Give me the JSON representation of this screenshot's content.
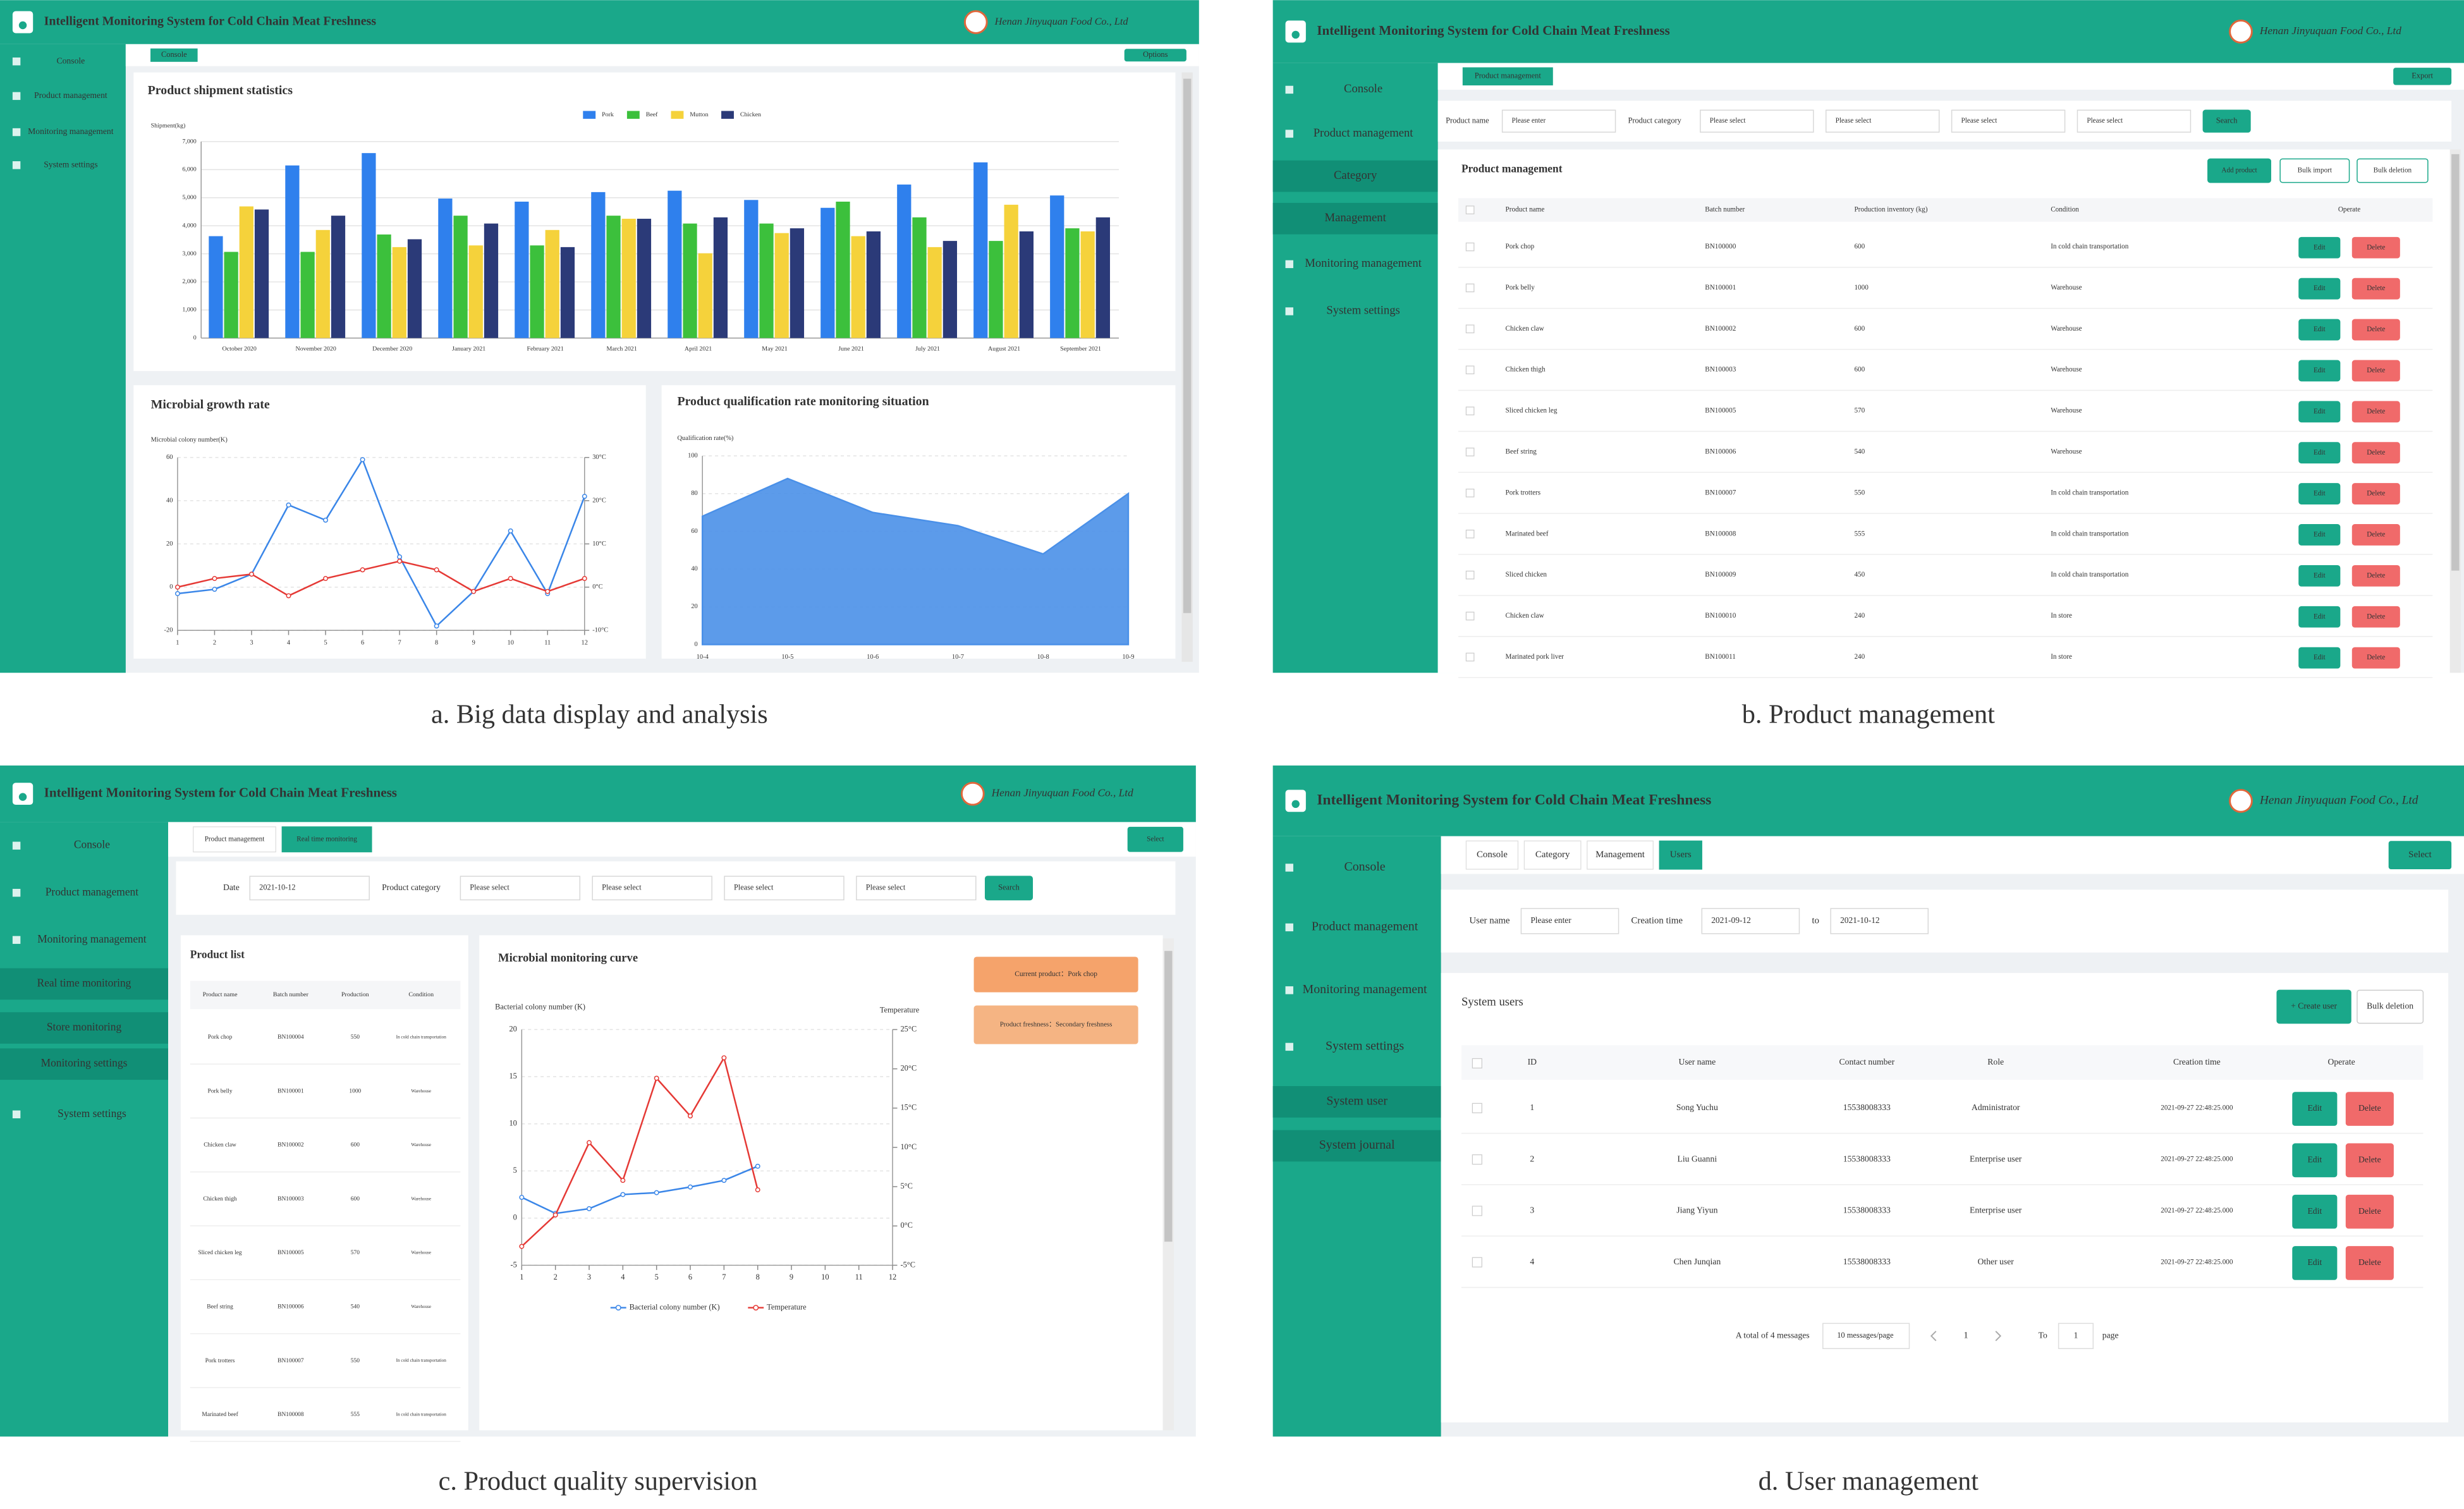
{
  "header": {
    "title": "Intelligent Monitoring System for Cold Chain Meat Freshness",
    "company": "Henan Jinyuquan Food Co., Ltd"
  },
  "buttons": {
    "edit": "Edit",
    "delete": "Delete",
    "search": "Search"
  },
  "panels": [
    {
      "caption": "a. Big data display and analysis",
      "menu": [
        "Console",
        "Product management",
        "Monitoring management",
        "System settings"
      ],
      "tabs": [
        "Console"
      ],
      "action": "Options"
    },
    {
      "caption": "b. Product management",
      "menu": [
        "Console",
        "Product management",
        "Category",
        "Management",
        "Monitoring management",
        "System settings"
      ],
      "tabs": [
        "Product management"
      ],
      "action": "Export",
      "filters": [
        {
          "label": "Product name",
          "input": "Please enter"
        },
        {
          "label": "Product category",
          "input": "Please select"
        },
        {
          "input": "Please select"
        },
        {
          "input": "Please select"
        },
        {
          "input": "Please select"
        }
      ],
      "section": "Product management",
      "section_buttons": [
        "Add product",
        "Bulk import",
        "Bulk deletion"
      ],
      "table": {
        "columns": [
          "Product name",
          "Batch number",
          "Production inventory (kg)",
          "Condition",
          "Operate"
        ],
        "rows": [
          [
            "Pork chop",
            "BN100000",
            600,
            "In cold chain transportation"
          ],
          [
            "Pork belly",
            "BN100001",
            1000,
            "Warehouse"
          ],
          [
            "Chicken claw",
            "BN100002",
            600,
            "Warehouse"
          ],
          [
            "Chicken thigh",
            "BN100003",
            600,
            "Warehouse"
          ],
          [
            "Sliced chicken leg",
            "BN100005",
            570,
            "Warehouse"
          ],
          [
            "Beef string",
            "BN100006",
            540,
            "Warehouse"
          ],
          [
            "Pork trotters",
            "BN100007",
            550,
            "In cold chain transportation"
          ],
          [
            "Marinated beef",
            "BN100008",
            555,
            "In cold chain transportation"
          ],
          [
            "Sliced chicken",
            "BN100009",
            450,
            "In cold chain transportation"
          ],
          [
            "Chicken claw",
            "BN100010",
            240,
            "In store"
          ],
          [
            "Marinated pork liver",
            "BN100011",
            240,
            "In store"
          ]
        ]
      }
    },
    {
      "caption": "c. Product quality supervision",
      "menu": [
        "Console",
        "Product management",
        "Monitoring management",
        "Real time monitoring",
        "Store monitoring",
        "Monitoring settings",
        "System settings"
      ],
      "tabs": [
        "Product management",
        "Real time monitoring"
      ],
      "action": "Select",
      "filters": [
        {
          "label": "Date",
          "input": "2021-10-12"
        },
        {
          "label": "Product category",
          "input": "Please select"
        },
        {
          "input": "Please select"
        },
        {
          "input": "Please select"
        },
        {
          "input": "Please select"
        }
      ],
      "list_title": "Product list",
      "table": {
        "columns": [
          "Product name",
          "Batch number",
          "Production",
          "Condition"
        ],
        "rows": [
          [
            "Pork chop",
            "BN100004",
            550,
            "In cold chain transportation"
          ],
          [
            "Pork belly",
            "BN100001",
            1000,
            "Warehouse"
          ],
          [
            "Chicken claw",
            "BN100002",
            600,
            "Warehouse"
          ],
          [
            "Chicken thigh",
            "BN100003",
            600,
            "Warehouse"
          ],
          [
            "Sliced chicken leg",
            "BN100005",
            570,
            "Warehouse"
          ],
          [
            "Beef string",
            "BN100006",
            540,
            "Warehouse"
          ],
          [
            "Pork trotters",
            "BN100007",
            550,
            "In cold chain transportation"
          ],
          [
            "Marinated beef",
            "BN100008",
            555,
            "In cold chain transportation"
          ]
        ]
      },
      "status": [
        "Current product：Pork chop",
        "Product freshness：Secondary freshness"
      ]
    },
    {
      "caption": "d. User management",
      "menu": [
        "Console",
        "Product management",
        "Monitoring management",
        "System settings",
        "System user",
        "System journal"
      ],
      "tabs": [
        "Console",
        "Category",
        "Management",
        "Users"
      ],
      "action": "Select",
      "filters": [
        {
          "label": "User name",
          "input": "Please enter"
        },
        {
          "label": "Creation time",
          "input": "2021-09-12"
        },
        {
          "label": "to",
          "input": "2021-10-12"
        }
      ],
      "section": "System users",
      "section_buttons": [
        "+ Create user",
        "Bulk deletion"
      ],
      "table": {
        "columns": [
          "ID",
          "User name",
          "Contact number",
          "Role",
          "Creation time",
          "Operate"
        ],
        "rows": [
          [
            1,
            "Song Yuchu",
            "15538008333",
            "Administrator",
            "2021-09-27 22:48:25.000"
          ],
          [
            2,
            "Liu Guanni",
            "15538008333",
            "Enterprise user",
            "2021-09-27 22:48:25.000"
          ],
          [
            3,
            "Jiang Yiyun",
            "15538008333",
            "Enterprise user",
            "2021-09-27 22:48:25.000"
          ],
          [
            4,
            "Chen Junqian",
            "15538008333",
            "Other user",
            "2021-09-27 22:48:25.000"
          ]
        ]
      },
      "pagination": {
        "total": "A total of 4 messages",
        "page_size": "10 messages/page",
        "current": 1,
        "goto_label": "To",
        "goto_value": 1,
        "page_label": "page"
      }
    }
  ],
  "chart_data": [
    {
      "type": "bar",
      "title": "Product shipment statistics",
      "y_label": "Shipment(kg)",
      "categories": [
        "October 2020",
        "November 2020",
        "December 2020",
        "January 2021",
        "February 2021",
        "March 2021",
        "April 2021",
        "May 2021",
        "June 2021",
        "July 2021",
        "August 2021",
        "September 2021"
      ],
      "series": [
        {
          "name": "Pork",
          "color": "#2f80ed",
          "values": [
            3630,
            6150,
            6590,
            4970,
            4860,
            5200,
            5250,
            4920,
            4640,
            5470,
            6260,
            5080
          ]
        },
        {
          "name": "Beef",
          "color": "#3cc03c",
          "values": [
            3070,
            3070,
            3690,
            4360,
            3300,
            4360,
            4080,
            4080,
            4860,
            4300,
            3460,
            3910
          ]
        },
        {
          "name": "Mutton",
          "color": "#f5d23b",
          "values": [
            4690,
            3850,
            3240,
            3300,
            3850,
            4250,
            3020,
            3740,
            3630,
            3240,
            4750,
            3800
          ]
        },
        {
          "name": "Chicken",
          "color": "#2b3a78",
          "values": [
            4580,
            4360,
            3520,
            4080,
            3240,
            4250,
            4300,
            3910,
            3800,
            3460,
            3800,
            4300
          ]
        }
      ],
      "ylim": [
        0,
        7000
      ],
      "yticks": [
        0,
        {
          "value": 1000,
          "label": "1,000"
        },
        {
          "value": 2000,
          "label": "2,000"
        },
        {
          "value": 3000,
          "label": "3,000"
        },
        {
          "value": 4000,
          "label": "4,000"
        },
        {
          "value": 5000,
          "label": "5,000"
        },
        {
          "value": 6000,
          "label": "6,000"
        },
        {
          "value": 7000,
          "label": "7,000"
        }
      ],
      "grid": true,
      "legend": "top"
    },
    {
      "type": "line",
      "title": "Microbial growth rate",
      "y_label": "Microbial colony number(K)",
      "x": [
        1,
        2,
        3,
        4,
        5,
        6,
        7,
        8,
        9,
        10,
        11,
        12
      ],
      "xlim": [
        1,
        12
      ],
      "xticks": [
        1,
        2,
        3,
        4,
        5,
        6,
        7,
        8,
        9,
        10,
        11,
        12
      ],
      "ylim": [
        -20,
        60
      ],
      "yticks": [
        -20,
        0,
        20,
        40,
        60
      ],
      "y2lim": [
        -10,
        30
      ],
      "y2ticks": [
        {
          "value": -10,
          "label": "-10°C"
        },
        {
          "value": 0,
          "label": "0°C"
        },
        {
          "value": 10,
          "label": "10°C"
        },
        {
          "value": 20,
          "label": "20°C"
        },
        {
          "value": 30,
          "label": "30°C"
        }
      ],
      "series": [
        {
          "color": "#3a86e8",
          "values": [
            -3,
            -1,
            6,
            38,
            31,
            59,
            14,
            -18,
            -2,
            26,
            -3,
            42
          ]
        },
        {
          "color": "#e53935",
          "axis": "y2",
          "values": [
            0,
            2,
            3,
            -2,
            2,
            4,
            6,
            4,
            -1,
            2,
            -1,
            2
          ]
        }
      ],
      "grid": true
    },
    {
      "type": "area",
      "title": "Product qualification rate monitoring situation",
      "y_label": "Qualification rate(%)",
      "categories": [
        "10-4",
        "10-5",
        "10-6",
        "10-7",
        "10-8",
        "10-9"
      ],
      "values": [
        68,
        88,
        70,
        63,
        48,
        80
      ],
      "color": "#4a90e8",
      "ylim": [
        0,
        100
      ],
      "yticks": [
        0,
        20,
        40,
        60,
        80,
        100
      ],
      "grid": true
    },
    {
      "type": "line",
      "title": "Microbial monitoring curve",
      "y_label": "Bacterial colony number (K)",
      "y2_label": "Temperature",
      "x": [
        1,
        2,
        3,
        4,
        5,
        6,
        7,
        8,
        9,
        10,
        11,
        12
      ],
      "xlim": [
        1,
        12
      ],
      "xticks": [
        1,
        2,
        3,
        4,
        5,
        6,
        7,
        8,
        9,
        10,
        11,
        12
      ],
      "ylim": [
        -5,
        20
      ],
      "yticks": [
        -5,
        0,
        5,
        10,
        15,
        20
      ],
      "y2lim": [
        -5,
        25
      ],
      "y2ticks": [
        {
          "value": -5,
          "label": "-5°C"
        },
        {
          "value": 0,
          "label": "0°C"
        },
        {
          "value": 5,
          "label": "5°C"
        },
        {
          "value": 10,
          "label": "10°C"
        },
        {
          "value": 15,
          "label": "15°C"
        },
        {
          "value": 20,
          "label": "20°C"
        },
        {
          "value": 25,
          "label": "25°C"
        }
      ],
      "series": [
        {
          "name": "Bacterial colony number (K)",
          "color": "#3a86e8",
          "values": [
            2.2,
            0.5,
            1,
            2.5,
            2.7,
            3.3,
            4,
            5.5,
            null,
            null,
            null,
            null
          ]
        },
        {
          "name": "Temperature",
          "color": "#e53935",
          "axis": "y2",
          "values": [
            -2.6,
            1.4,
            10.6,
            5.8,
            18.8,
            14,
            21.4,
            4.6,
            null,
            null,
            null,
            null
          ]
        }
      ],
      "grid": true,
      "legend": "bottom"
    }
  ]
}
